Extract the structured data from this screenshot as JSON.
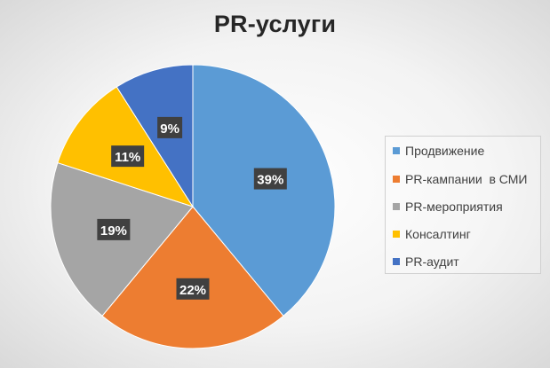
{
  "chart_data": {
    "type": "pie",
    "title": "PR-услуги",
    "categories": [
      "Продвижение",
      "PR-кампании  в СМИ",
      "PR-мероприятия",
      "Консалтинг",
      "PR-аудит"
    ],
    "values": [
      39,
      22,
      19,
      11,
      9
    ],
    "data_labels": [
      "39%",
      "22%",
      "19%",
      "11%",
      "9%"
    ],
    "colors": [
      "#5b9bd5",
      "#ed7d31",
      "#a5a5a5",
      "#ffc000",
      "#4472c4"
    ],
    "legend_position": "right"
  }
}
